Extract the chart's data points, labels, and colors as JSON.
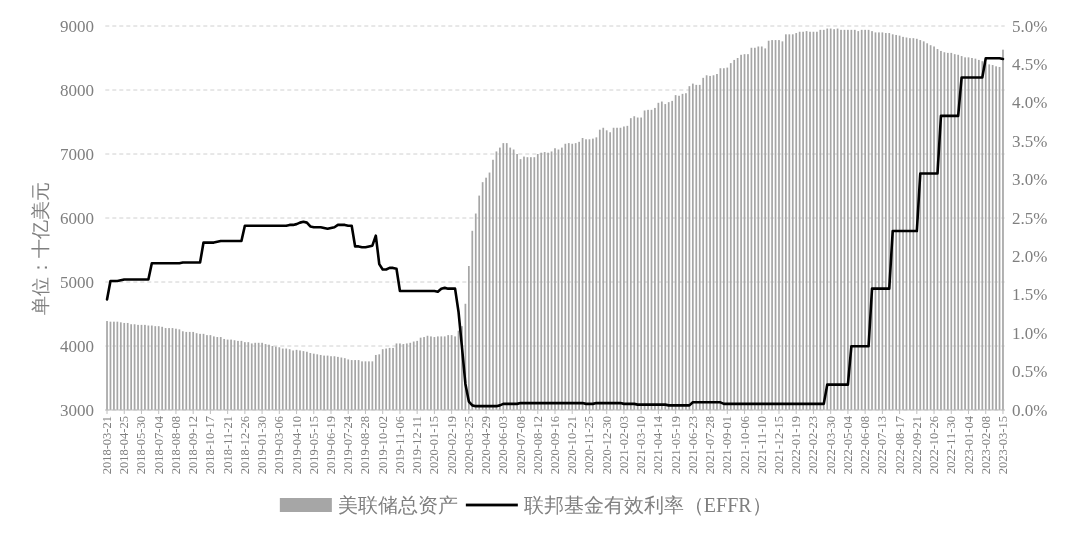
{
  "chart_data": {
    "type": "bar",
    "ylabel": "单位：十亿美元",
    "categories": [
      "2018-03-21",
      null,
      null,
      null,
      null,
      "2018-04-25",
      null,
      null,
      null,
      null,
      "2018-05-30",
      null,
      null,
      null,
      null,
      "2018-07-04",
      null,
      null,
      null,
      null,
      "2018-08-08",
      null,
      null,
      null,
      null,
      "2018-09-12",
      null,
      null,
      null,
      null,
      "2018-10-17",
      null,
      null,
      null,
      null,
      "2018-11-21",
      null,
      null,
      null,
      null,
      "2018-12-26",
      null,
      null,
      null,
      null,
      "2019-01-30",
      null,
      null,
      null,
      null,
      "2019-03-06",
      null,
      null,
      null,
      null,
      "2019-04-10",
      null,
      null,
      null,
      null,
      "2019-05-15",
      null,
      null,
      null,
      null,
      "2019-06-19",
      null,
      null,
      null,
      null,
      "2019-07-24",
      null,
      null,
      null,
      null,
      "2019-08-28",
      null,
      null,
      null,
      null,
      "2019-10-02",
      null,
      null,
      null,
      null,
      "2019-11-06",
      null,
      null,
      null,
      null,
      "2019-12-11",
      null,
      null,
      null,
      null,
      "2020-01-15",
      null,
      null,
      null,
      null,
      "2020-02-19",
      null,
      null,
      null,
      null,
      "2020-03-25",
      null,
      null,
      null,
      null,
      "2020-04-29",
      null,
      null,
      null,
      null,
      "2020-06-03",
      null,
      null,
      null,
      null,
      "2020-07-08",
      null,
      null,
      null,
      null,
      "2020-08-12",
      null,
      null,
      null,
      null,
      "2020-09-16",
      null,
      null,
      null,
      null,
      "2020-10-21",
      null,
      null,
      null,
      null,
      "2020-11-25",
      null,
      null,
      null,
      null,
      "2020-12-30",
      null,
      null,
      null,
      null,
      "2021-02-03",
      null,
      null,
      null,
      null,
      "2021-03-10",
      null,
      null,
      null,
      null,
      "2021-04-14",
      null,
      null,
      null,
      null,
      "2021-05-19",
      null,
      null,
      null,
      null,
      "2021-06-23",
      null,
      null,
      null,
      null,
      "2021-07-28",
      null,
      null,
      null,
      null,
      "2021-09-01",
      null,
      null,
      null,
      null,
      "2021-10-06",
      null,
      null,
      null,
      null,
      "2021-11-10",
      null,
      null,
      null,
      null,
      "2021-12-15",
      null,
      null,
      null,
      null,
      "2022-01-19",
      null,
      null,
      null,
      null,
      "2022-02-23",
      null,
      null,
      null,
      null,
      "2022-03-30",
      null,
      null,
      null,
      null,
      "2022-05-04",
      null,
      null,
      null,
      null,
      "2022-06-08",
      null,
      null,
      null,
      null,
      "2022-07-13",
      null,
      null,
      null,
      null,
      "2022-08-17",
      null,
      null,
      null,
      null,
      "2022-09-21",
      null,
      null,
      null,
      null,
      "2022-10-26",
      null,
      null,
      null,
      null,
      "2022-11-30",
      null,
      null,
      null,
      null,
      "2023-01-04",
      null,
      null,
      null,
      null,
      "2023-02-08",
      null,
      null,
      null,
      null,
      "2023-03-15"
    ],
    "series": [
      {
        "name": "美联储总资产",
        "color": "#a6a6a6",
        "values": [
          4390,
          4380,
          4380,
          4380,
          4370,
          4360,
          4360,
          4340,
          4340,
          4330,
          4330,
          4330,
          4320,
          4320,
          4310,
          4310,
          4300,
          4280,
          4280,
          4280,
          4270,
          4260,
          4230,
          4220,
          4220,
          4220,
          4200,
          4190,
          4190,
          4170,
          4170,
          4150,
          4140,
          4140,
          4110,
          4100,
          4100,
          4090,
          4080,
          4080,
          4060,
          4060,
          4040,
          4050,
          4050,
          4050,
          4030,
          4020,
          4000,
          3990,
          3980,
          3960,
          3960,
          3950,
          3930,
          3940,
          3930,
          3920,
          3910,
          3890,
          3880,
          3870,
          3860,
          3850,
          3850,
          3840,
          3840,
          3830,
          3820,
          3810,
          3790,
          3780,
          3780,
          3780,
          3760,
          3760,
          3760,
          3760,
          3860,
          3870,
          3950,
          3960,
          3970,
          3970,
          4040,
          4040,
          4030,
          4040,
          4050,
          4070,
          4080,
          4130,
          4140,
          4160,
          4150,
          4140,
          4150,
          4150,
          4150,
          4170,
          4170,
          4150,
          4240,
          4310,
          4660,
          5250,
          5800,
          6070,
          6350,
          6560,
          6630,
          6710,
          6910,
          7040,
          7100,
          7170,
          7170,
          7100,
          7070,
          7000,
          6920,
          6960,
          6950,
          6950,
          6950,
          7000,
          7020,
          7030,
          7020,
          7040,
          7090,
          7070,
          7100,
          7160,
          7170,
          7160,
          7170,
          7190,
          7250,
          7230,
          7230,
          7240,
          7260,
          7380,
          7410,
          7370,
          7340,
          7410,
          7410,
          7410,
          7430,
          7440,
          7560,
          7590,
          7570,
          7570,
          7680,
          7690,
          7690,
          7720,
          7800,
          7820,
          7780,
          7810,
          7830,
          7920,
          7910,
          7940,
          7950,
          8060,
          8100,
          8080,
          8080,
          8190,
          8230,
          8220,
          8230,
          8250,
          8340,
          8340,
          8350,
          8420,
          8470,
          8500,
          8550,
          8560,
          8560,
          8660,
          8660,
          8680,
          8680,
          8650,
          8770,
          8780,
          8780,
          8780,
          8760,
          8870,
          8870,
          8870,
          8890,
          8910,
          8910,
          8920,
          8910,
          8910,
          8910,
          8940,
          8940,
          8960,
          8960,
          8950,
          8960,
          8940,
          8940,
          8940,
          8940,
          8940,
          8920,
          8940,
          8940,
          8940,
          8920,
          8900,
          8900,
          8900,
          8890,
          8890,
          8870,
          8860,
          8850,
          8830,
          8820,
          8810,
          8810,
          8800,
          8780,
          8760,
          8730,
          8700,
          8680,
          8640,
          8610,
          8590,
          8580,
          8580,
          8560,
          8550,
          8530,
          8510,
          8510,
          8500,
          8490,
          8470,
          8450,
          8430,
          8400,
          8390,
          8370,
          8360,
          8630
        ]
      },
      {
        "name": "联邦基金有效利率（EFFR）",
        "type": "line",
        "color": "#000000",
        "axis": "y2",
        "values": [
          1.44,
          1.68,
          1.68,
          1.68,
          1.69,
          1.7,
          1.7,
          1.7,
          1.7,
          1.7,
          1.7,
          1.7,
          1.7,
          1.91,
          1.91,
          1.91,
          1.91,
          1.91,
          1.91,
          1.91,
          1.91,
          1.91,
          1.92,
          1.92,
          1.92,
          1.92,
          1.92,
          1.92,
          2.18,
          2.18,
          2.18,
          2.18,
          2.19,
          2.2,
          2.2,
          2.2,
          2.2,
          2.2,
          2.2,
          2.2,
          2.4,
          2.4,
          2.4,
          2.4,
          2.4,
          2.4,
          2.4,
          2.4,
          2.4,
          2.4,
          2.4,
          2.4,
          2.4,
          2.41,
          2.41,
          2.42,
          2.44,
          2.45,
          2.44,
          2.39,
          2.38,
          2.38,
          2.38,
          2.37,
          2.36,
          2.37,
          2.38,
          2.41,
          2.41,
          2.41,
          2.4,
          2.4,
          2.13,
          2.13,
          2.12,
          2.12,
          2.13,
          2.14,
          2.27,
          1.9,
          1.83,
          1.83,
          1.85,
          1.85,
          1.84,
          1.55,
          1.55,
          1.55,
          1.55,
          1.55,
          1.55,
          1.55,
          1.55,
          1.55,
          1.55,
          1.55,
          1.54,
          1.58,
          1.59,
          1.58,
          1.58,
          1.58,
          1.28,
          0.82,
          0.34,
          0.11,
          0.06,
          0.05,
          0.05,
          0.05,
          0.05,
          0.05,
          0.05,
          0.05,
          0.06,
          0.08,
          0.08,
          0.08,
          0.08,
          0.08,
          0.09,
          0.09,
          0.09,
          0.09,
          0.09,
          0.09,
          0.09,
          0.09,
          0.09,
          0.09,
          0.09,
          0.09,
          0.09,
          0.09,
          0.09,
          0.09,
          0.09,
          0.09,
          0.09,
          0.08,
          0.08,
          0.08,
          0.09,
          0.09,
          0.09,
          0.09,
          0.09,
          0.09,
          0.09,
          0.09,
          0.08,
          0.08,
          0.08,
          0.08,
          0.07,
          0.07,
          0.07,
          0.07,
          0.07,
          0.07,
          0.07,
          0.07,
          0.07,
          0.06,
          0.06,
          0.06,
          0.06,
          0.06,
          0.06,
          0.06,
          0.1,
          0.1,
          0.1,
          0.1,
          0.1,
          0.1,
          0.1,
          0.1,
          0.1,
          0.08,
          0.08,
          0.08,
          0.08,
          0.08,
          0.08,
          0.08,
          0.08,
          0.08,
          0.08,
          0.08,
          0.08,
          0.08,
          0.08,
          0.08,
          0.08,
          0.08,
          0.08,
          0.08,
          0.08,
          0.08,
          0.08,
          0.08,
          0.08,
          0.08,
          0.08,
          0.08,
          0.08,
          0.08,
          0.08,
          0.33,
          0.33,
          0.33,
          0.33,
          0.33,
          0.33,
          0.33,
          0.83,
          0.83,
          0.83,
          0.83,
          0.83,
          0.83,
          1.58,
          1.58,
          1.58,
          1.58,
          1.58,
          1.58,
          2.33,
          2.33,
          2.33,
          2.33,
          2.33,
          2.33,
          2.33,
          2.33,
          3.08,
          3.08,
          3.08,
          3.08,
          3.08,
          3.08,
          3.83,
          3.83,
          3.83,
          3.83,
          3.83,
          3.83,
          4.33,
          4.33,
          4.33,
          4.33,
          4.33,
          4.33,
          4.33,
          4.58,
          4.58,
          4.58,
          4.58,
          4.58,
          4.57
        ]
      }
    ],
    "ylim": [
      3000,
      9000
    ],
    "yticks": [
      3000,
      4000,
      5000,
      6000,
      7000,
      8000,
      9000
    ],
    "y2lim": [
      0,
      5
    ],
    "y2ticks": [
      {
        "value": 0,
        "label": "0.0%"
      },
      {
        "value": 0.5,
        "label": "0.5%"
      },
      {
        "value": 1,
        "label": "1.0%"
      },
      {
        "value": 1.5,
        "label": "1.5%"
      },
      {
        "value": 2,
        "label": "2.0%"
      },
      {
        "value": 2.5,
        "label": "2.5%"
      },
      {
        "value": 3,
        "label": "3.0%"
      },
      {
        "value": 3.5,
        "label": "3.5%"
      },
      {
        "value": 4,
        "label": "4.0%"
      },
      {
        "value": 4.5,
        "label": "4.5%"
      },
      {
        "value": 5,
        "label": "5.0%"
      }
    ],
    "grid": "y",
    "legend": "bottom"
  }
}
